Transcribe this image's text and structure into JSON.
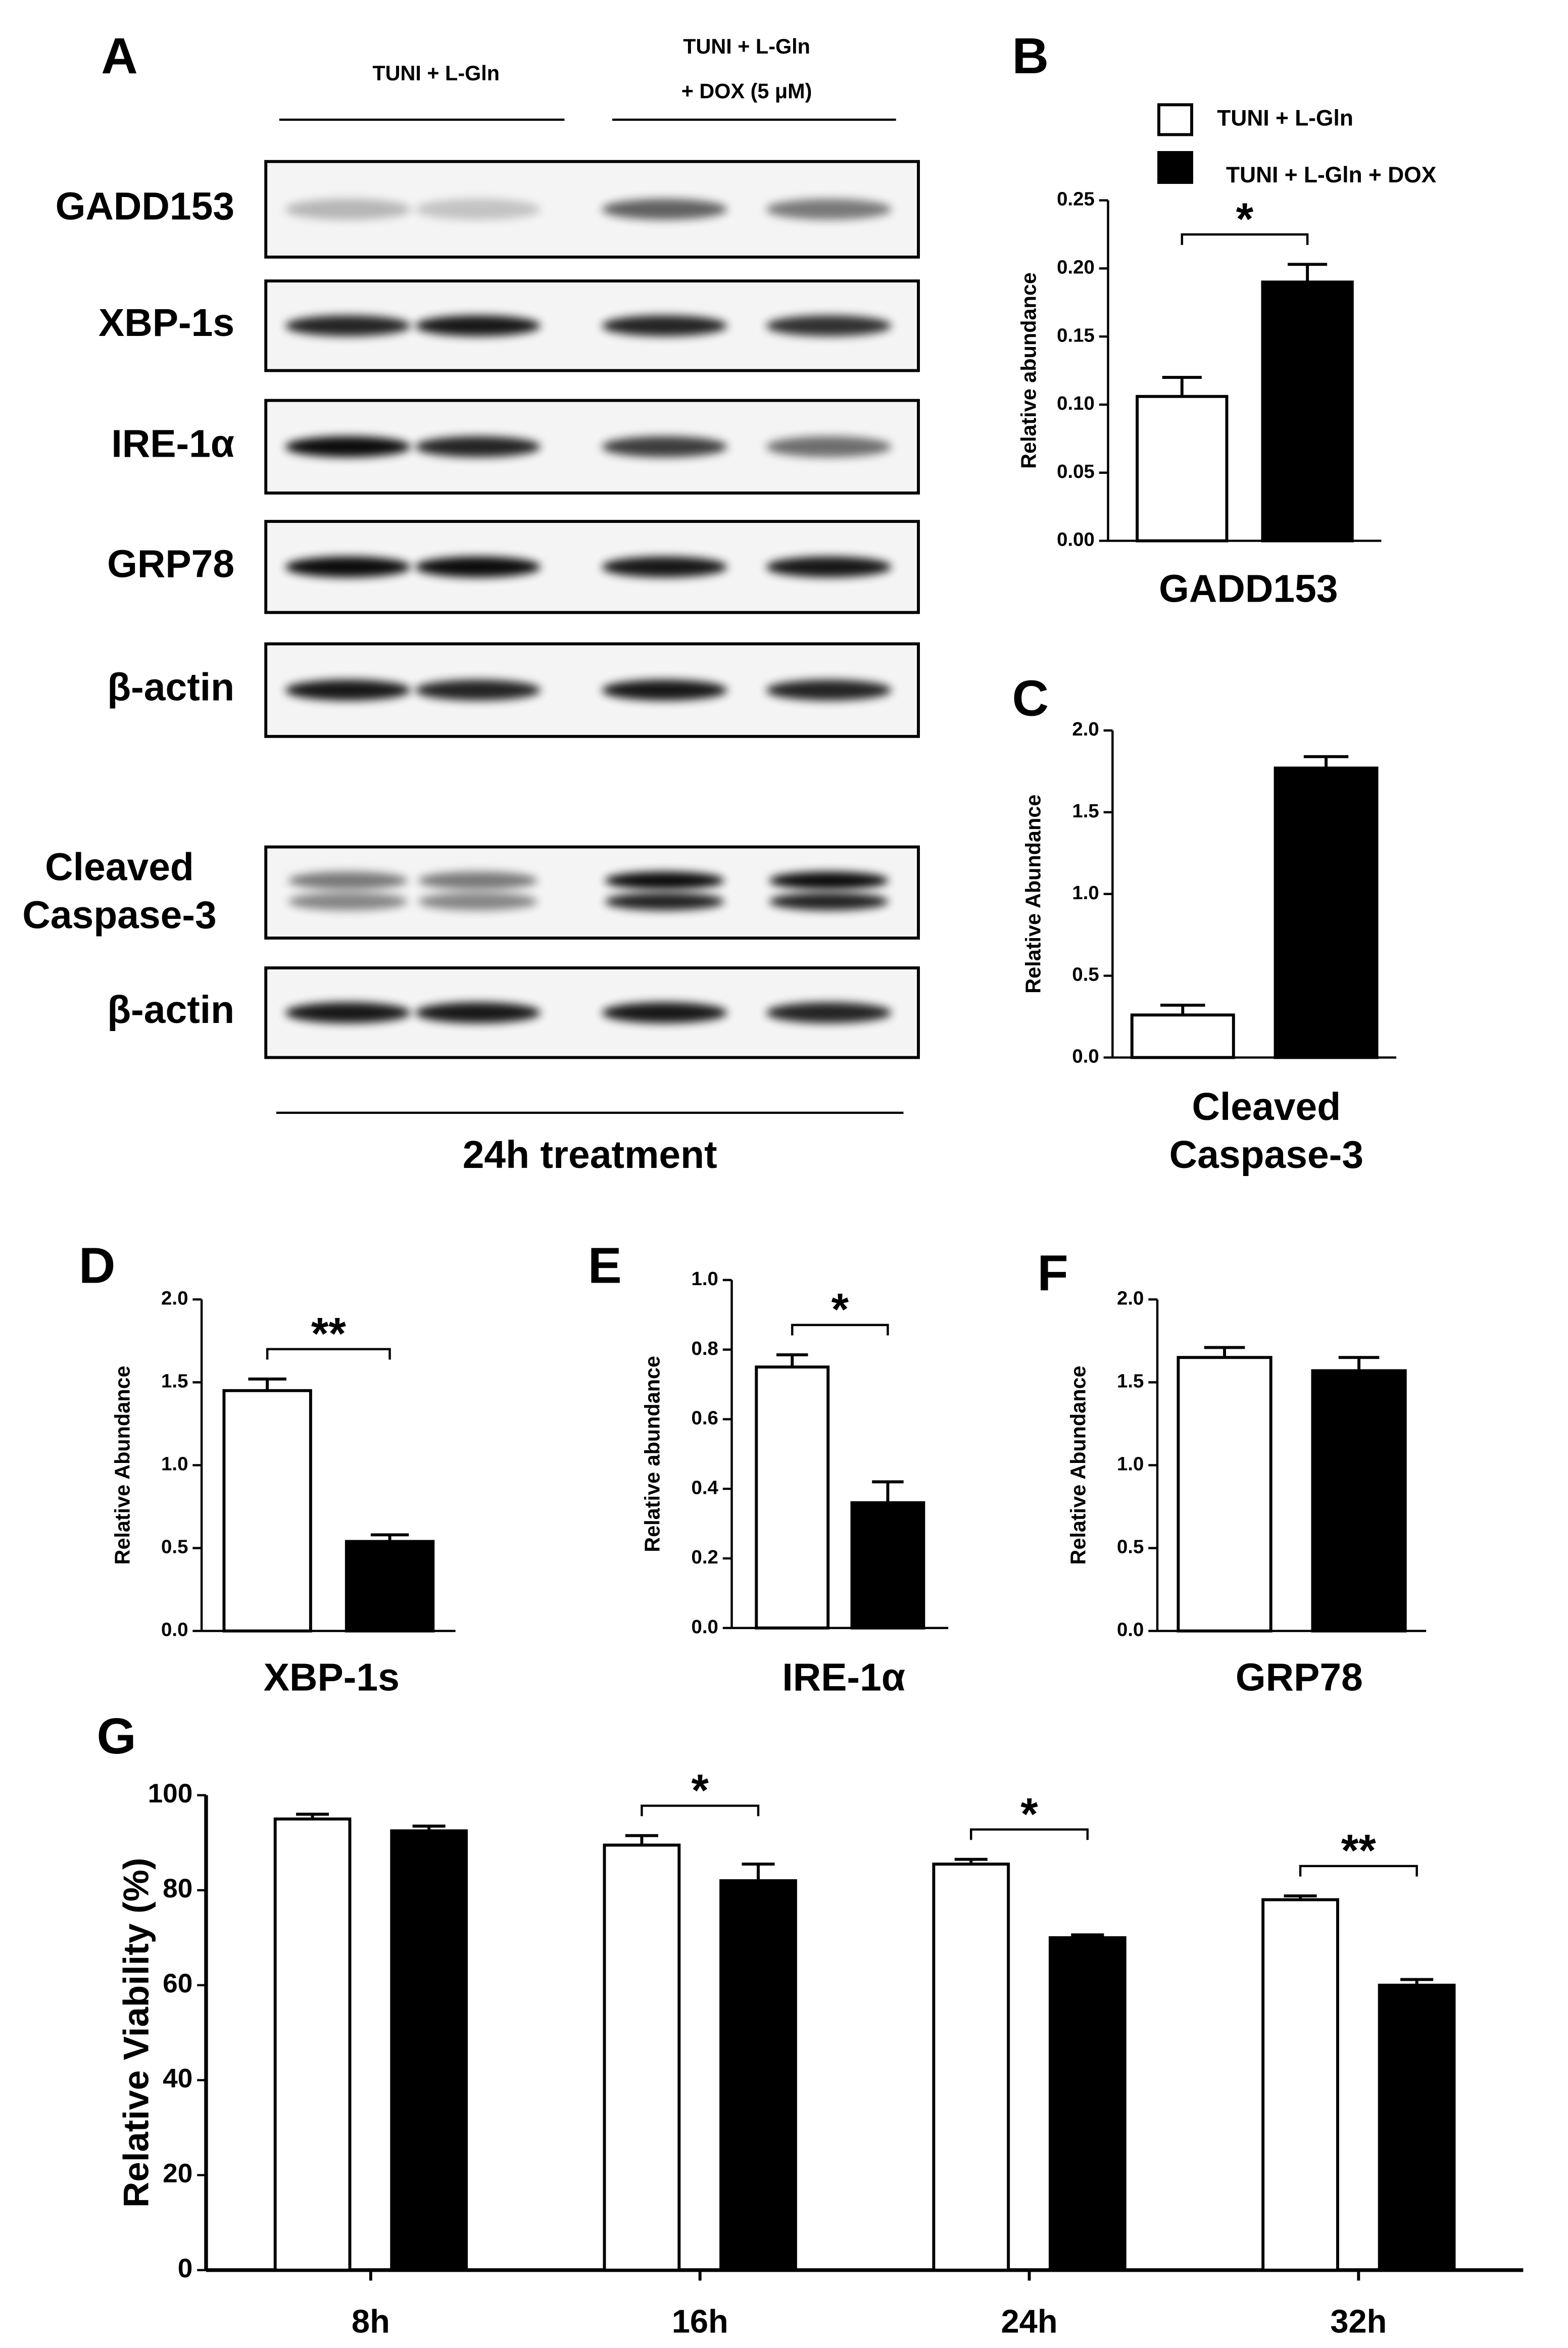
{
  "blot": {
    "panel": "A",
    "groups": [
      {
        "label": [
          "TUNI + L-Gln"
        ]
      },
      {
        "label": [
          "TUNI + L-Gln",
          "+ DOX (5 μM)"
        ]
      }
    ],
    "rows": [
      [
        "GADD153"
      ],
      [
        "XBP-1s"
      ],
      [
        "IRE-1α"
      ],
      [
        "GRP78"
      ],
      [
        "β-actin"
      ],
      [
        "Cleaved",
        "Caspase-3"
      ],
      [
        "β-actin"
      ]
    ],
    "footer": "24h treatment"
  },
  "chart_data": [
    {
      "type": "bar",
      "panel": "B",
      "x_label": "GADD153",
      "y_label": "Relative abundance",
      "legend": "top",
      "series": [
        {
          "name": "TUNI + L-Gln",
          "color": "#ffffff",
          "values": [
            0.106
          ],
          "errors": [
            0.014
          ]
        },
        {
          "name": "TUNI + L-Gln + DOX",
          "color": "#000000",
          "values": [
            0.19
          ],
          "errors": [
            0.013
          ]
        }
      ],
      "annotations": [
        "*"
      ],
      "ylim": [
        0,
        0.25
      ],
      "yticks": [
        {
          "value": 0,
          "label": "0.00"
        },
        0.05,
        {
          "value": 0.1,
          "label": "0.10"
        },
        0.15,
        {
          "value": 0.2,
          "label": "0.20"
        },
        0.25
      ]
    },
    {
      "type": "bar",
      "panel": "C",
      "x_label": [
        "Cleaved",
        "Caspase-3"
      ],
      "y_label": "Relative Abundance",
      "series": [
        {
          "color": "#ffffff",
          "values": [
            0.26
          ],
          "errors": [
            0.06
          ]
        },
        {
          "color": "#000000",
          "values": [
            1.77
          ],
          "errors": [
            0.07
          ]
        }
      ],
      "ylim": [
        0,
        2
      ],
      "yticks": [
        {
          "value": 0,
          "label": "0.0"
        },
        0.5,
        {
          "value": 1,
          "label": "1.0"
        },
        1.5,
        {
          "value": 2,
          "label": "2.0"
        }
      ]
    },
    {
      "type": "bar",
      "panel": "D",
      "x_label": "XBP-1s",
      "y_label": "Relative Abundance",
      "series": [
        {
          "color": "#ffffff",
          "values": [
            1.45
          ],
          "errors": [
            0.07
          ]
        },
        {
          "color": "#000000",
          "values": [
            0.54
          ],
          "errors": [
            0.04
          ]
        }
      ],
      "annotations": [
        "**"
      ],
      "ylim": [
        0,
        2
      ],
      "yticks": [
        {
          "value": 0,
          "label": "0.0"
        },
        0.5,
        {
          "value": 1,
          "label": "1.0"
        },
        1.5,
        {
          "value": 2,
          "label": "2.0"
        }
      ]
    },
    {
      "type": "bar",
      "panel": "E",
      "x_label": "IRE-1α",
      "y_label": "Relative abundance",
      "series": [
        {
          "color": "#ffffff",
          "values": [
            0.75
          ],
          "errors": [
            0.035
          ]
        },
        {
          "color": "#000000",
          "values": [
            0.36
          ],
          "errors": [
            0.06
          ]
        }
      ],
      "annotations": [
        "*"
      ],
      "ylim": [
        0,
        1
      ],
      "yticks": [
        {
          "value": 0,
          "label": "0.0"
        },
        0.2,
        0.4,
        0.6,
        0.8,
        {
          "value": 1,
          "label": "1.0"
        }
      ]
    },
    {
      "type": "bar",
      "panel": "F",
      "x_label": "GRP78",
      "y_label": "Relative Abundance",
      "series": [
        {
          "color": "#ffffff",
          "values": [
            1.65
          ],
          "errors": [
            0.06
          ]
        },
        {
          "color": "#000000",
          "values": [
            1.57
          ],
          "errors": [
            0.08
          ]
        }
      ],
      "ylim": [
        0,
        2
      ],
      "yticks": [
        {
          "value": 0,
          "label": "0.0"
        },
        0.5,
        {
          "value": 1,
          "label": "1.0"
        },
        1.5,
        {
          "value": 2,
          "label": "2.0"
        }
      ]
    },
    {
      "type": "bar",
      "panel": "G",
      "y_label": "Relative Viability (%)",
      "categories": [
        "8h",
        "16h",
        "24h",
        "32h"
      ],
      "series": [
        {
          "color": "#ffffff",
          "values": [
            95,
            89.5,
            85.5,
            78
          ],
          "errors": [
            1,
            2,
            1,
            0.8
          ]
        },
        {
          "color": "#000000",
          "values": [
            92.5,
            82,
            70,
            60
          ],
          "errors": [
            1,
            3.5,
            0.6,
            1.2
          ]
        }
      ],
      "annotations": [
        null,
        "*",
        "*",
        "**"
      ],
      "ylim": [
        0,
        100
      ],
      "yticks": [
        0,
        20,
        40,
        60,
        80,
        100
      ]
    }
  ]
}
